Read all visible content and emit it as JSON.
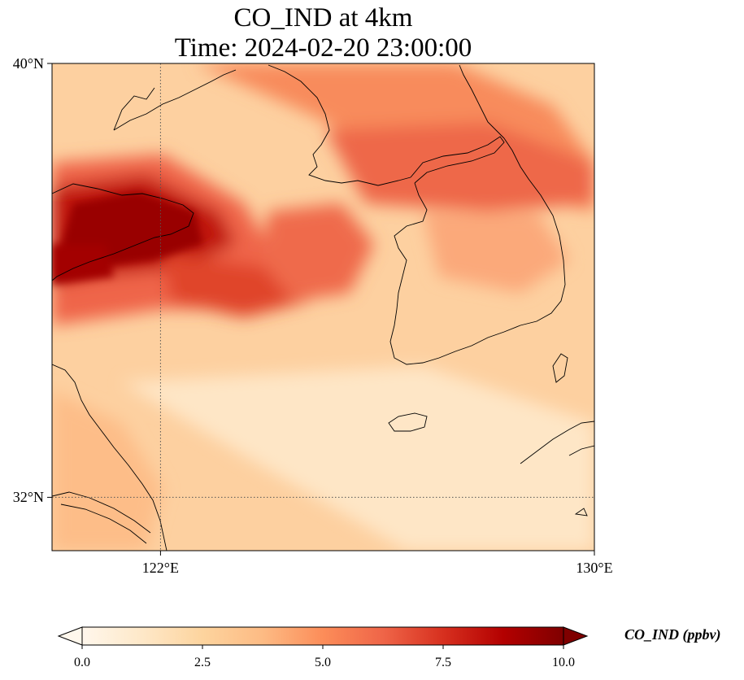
{
  "title": {
    "line1": "CO_IND at 4km",
    "line2": "Time: 2024-02-20 23:00:00"
  },
  "map": {
    "variable": "CO_IND",
    "lon_range": [
      120.0,
      130.0
    ],
    "lat_range": [
      31.0,
      40.0
    ],
    "gridlines": {
      "lon": [
        122
      ],
      "lat": [
        32
      ],
      "style": "dotted"
    },
    "x_tick_labels": [
      {
        "lon": 122,
        "label": "122°E"
      },
      {
        "lon": 130,
        "label": "130°E"
      }
    ],
    "y_tick_labels": [
      {
        "lat": 40,
        "label": "40°N"
      },
      {
        "lat": 32,
        "label": "32°N"
      }
    ],
    "colormap": "OrRd",
    "colormap_stops": [
      "#fff7ec",
      "#fee8c8",
      "#fdd49e",
      "#fdbb84",
      "#fc8d59",
      "#ef6548",
      "#d7301f",
      "#b30000",
      "#7f0000"
    ]
  },
  "colorbar": {
    "title": "CO_IND (ppbv)",
    "min": 0.0,
    "max": 10.0,
    "extend": "both",
    "ticks": [
      {
        "value": 0.0,
        "label": "0.0"
      },
      {
        "value": 2.5,
        "label": "2.5"
      },
      {
        "value": 5.0,
        "label": "5.0"
      },
      {
        "value": 7.5,
        "label": "7.5"
      },
      {
        "value": 10.0,
        "label": "10.0"
      }
    ]
  }
}
